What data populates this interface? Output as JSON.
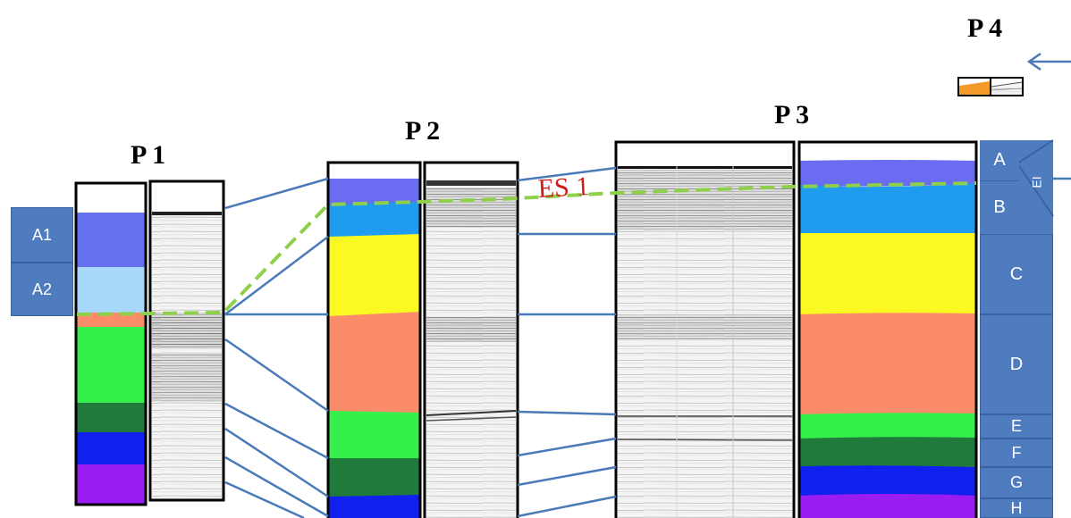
{
  "profiles": {
    "p1": "P 1",
    "p2": "P 2",
    "p3": "P 3",
    "p4": "P 4"
  },
  "left_units": [
    "A1",
    "A2"
  ],
  "right_units": [
    "A",
    "B",
    "C",
    "D",
    "E",
    "F",
    "G",
    "H"
  ],
  "surface_label": "ES 1",
  "wedge_label": "EI",
  "colors": {
    "unit_box": "#4f7cbf",
    "correlation_line": "#4a7ab8",
    "surface_line": "#8fd04a",
    "surface_text": "#d01b1b",
    "layer_a1": "#6470f0",
    "layer_a2": "#a6d8fa",
    "layer_a": "#6a6cf2",
    "layer_b": "#1f9cf0",
    "layer_c": "#fafa22",
    "layer_d": "#fa8c6a",
    "layer_e": "#35f04a",
    "layer_f": "#1f7a3c",
    "layer_g": "#1020ee",
    "layer_h": "#9a1cf0"
  }
}
